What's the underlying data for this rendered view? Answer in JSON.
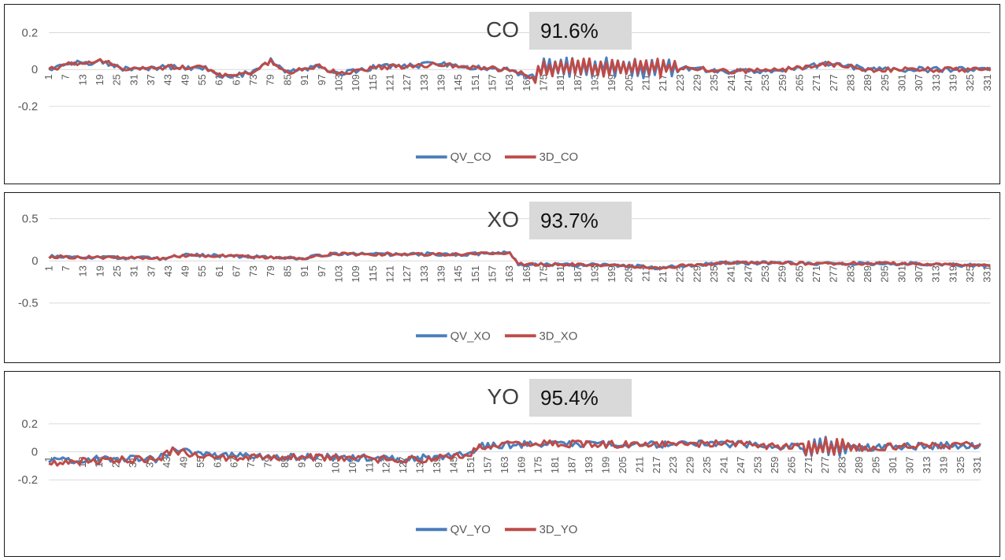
{
  "colors": {
    "qv": "#4a7ebb",
    "d3": "#be4b48",
    "grid": "#d9d9d9",
    "axis": "#595959"
  },
  "chart_data": [
    {
      "type": "line",
      "title": "CO",
      "percent_label": "91.6%",
      "ylim": [
        -0.25,
        0.25
      ],
      "yticks": [
        0.2,
        0,
        -0.2
      ],
      "ytick_labels": [
        "0.2",
        "0",
        "-0.2"
      ],
      "x_count": 332,
      "x_tick_labels": [
        "1",
        "7",
        "13",
        "19",
        "25",
        "31",
        "37",
        "43",
        "49",
        "55",
        "61",
        "67",
        "73",
        "79",
        "85",
        "91",
        "97",
        "103",
        "109",
        "115",
        "121",
        "127",
        "133",
        "139",
        "145",
        "151",
        "157",
        "163",
        "169",
        "175",
        "181",
        "187",
        "193",
        "199",
        "205",
        "211",
        "217",
        "223",
        "229",
        "235",
        "241",
        "247",
        "253",
        "259",
        "265",
        "271",
        "277",
        "283",
        "289",
        "295",
        "301",
        "307",
        "313",
        "319",
        "325",
        "331"
      ],
      "grid": true,
      "legend": "bottom",
      "series": [
        {
          "name": "QV_CO",
          "segments": [
            [
              1,
              0.0
            ],
            [
              10,
              0.035
            ],
            [
              20,
              0.045
            ],
            [
              28,
              0.0
            ],
            [
              45,
              0.015
            ],
            [
              55,
              0.01
            ],
            [
              62,
              -0.035
            ],
            [
              72,
              -0.02
            ],
            [
              79,
              0.05
            ],
            [
              85,
              -0.02
            ],
            [
              95,
              0.02
            ],
            [
              103,
              -0.02
            ],
            [
              115,
              0.01
            ],
            [
              127,
              0.02
            ],
            [
              139,
              0.03
            ],
            [
              151,
              0.01
            ],
            [
              163,
              0.0
            ],
            [
              170,
              -0.04
            ],
            [
              175,
              0.01
            ],
            [
              225,
              0.01
            ],
            [
              240,
              -0.01
            ],
            [
              260,
              0.0
            ],
            [
              275,
              0.03
            ],
            [
              290,
              0.0
            ],
            [
              310,
              0.0
            ],
            [
              332,
              0.0
            ]
          ],
          "noise": 0.015,
          "burst": [
            172,
            222,
            0.04
          ]
        },
        {
          "name": "3D_CO",
          "segments": [
            [
              1,
              0.0
            ],
            [
              10,
              0.035
            ],
            [
              20,
              0.045
            ],
            [
              28,
              0.0
            ],
            [
              45,
              0.015
            ],
            [
              55,
              0.01
            ],
            [
              62,
              -0.03
            ],
            [
              72,
              -0.015
            ],
            [
              79,
              0.045
            ],
            [
              85,
              -0.02
            ],
            [
              95,
              0.02
            ],
            [
              103,
              -0.02
            ],
            [
              115,
              0.01
            ],
            [
              127,
              0.02
            ],
            [
              139,
              0.03
            ],
            [
              151,
              0.01
            ],
            [
              163,
              0.0
            ],
            [
              170,
              -0.04
            ],
            [
              175,
              0.01
            ],
            [
              225,
              0.01
            ],
            [
              240,
              -0.01
            ],
            [
              260,
              0.0
            ],
            [
              275,
              0.03
            ],
            [
              290,
              0.0
            ],
            [
              310,
              0.0
            ],
            [
              332,
              0.0
            ]
          ],
          "noise": 0.013,
          "burst": [
            172,
            222,
            0.04
          ]
        }
      ]
    },
    {
      "type": "line",
      "title": "XO",
      "percent_label": "93.7%",
      "ylim": [
        -0.62,
        0.62
      ],
      "yticks": [
        0.5,
        0,
        -0.5
      ],
      "ytick_labels": [
        "0.5",
        "0",
        "-0.5"
      ],
      "x_count": 332,
      "x_tick_labels": [
        "1",
        "7",
        "13",
        "19",
        "25",
        "31",
        "37",
        "43",
        "49",
        "55",
        "61",
        "67",
        "73",
        "79",
        "85",
        "91",
        "97",
        "103",
        "109",
        "115",
        "121",
        "127",
        "133",
        "139",
        "145",
        "151",
        "157",
        "163",
        "169",
        "175",
        "181",
        "187",
        "193",
        "199",
        "205",
        "211",
        "217",
        "223",
        "229",
        "235",
        "241",
        "247",
        "253",
        "259",
        "265",
        "271",
        "277",
        "283",
        "289",
        "295",
        "301",
        "307",
        "313",
        "319",
        "325",
        "331"
      ],
      "grid": true,
      "legend": "bottom",
      "series": [
        {
          "name": "QV_XO",
          "segments": [
            [
              1,
              0.05
            ],
            [
              40,
              0.03
            ],
            [
              50,
              0.07
            ],
            [
              90,
              0.03
            ],
            [
              100,
              0.08
            ],
            [
              150,
              0.08
            ],
            [
              163,
              0.1
            ],
            [
              166,
              -0.04
            ],
            [
              200,
              -0.05
            ],
            [
              215,
              -0.08
            ],
            [
              240,
              -0.02
            ],
            [
              270,
              -0.03
            ],
            [
              300,
              -0.03
            ],
            [
              332,
              -0.06
            ]
          ],
          "noise": 0.02,
          "burst": [
            0,
            0,
            0
          ]
        },
        {
          "name": "3D_XO",
          "segments": [
            [
              1,
              0.05
            ],
            [
              40,
              0.03
            ],
            [
              50,
              0.07
            ],
            [
              90,
              0.03
            ],
            [
              100,
              0.08
            ],
            [
              150,
              0.08
            ],
            [
              163,
              0.1
            ],
            [
              166,
              -0.04
            ],
            [
              200,
              -0.05
            ],
            [
              215,
              -0.08
            ],
            [
              240,
              -0.02
            ],
            [
              270,
              -0.03
            ],
            [
              300,
              -0.03
            ],
            [
              332,
              -0.06
            ]
          ],
          "noise": 0.018,
          "burst": [
            0,
            0,
            0
          ]
        }
      ]
    },
    {
      "type": "line",
      "title": "YO",
      "percent_label": "95.4%",
      "ylim": [
        -0.27,
        0.27
      ],
      "yticks": [
        0.2,
        0,
        -0.2
      ],
      "ytick_labels": [
        "0.2",
        "0",
        "-0.2"
      ],
      "x_count": 332,
      "x_tick_labels": [
        "1",
        "7",
        "13",
        "19",
        "25",
        "31",
        "37",
        "43",
        "49",
        "55",
        "61",
        "67",
        "73",
        "79",
        "85",
        "91",
        "97",
        "103",
        "109",
        "115",
        "121",
        "127",
        "133",
        "139",
        "145",
        "151",
        "157",
        "163",
        "169",
        "175",
        "181",
        "187",
        "193",
        "199",
        "205",
        "211",
        "217",
        "223",
        "229",
        "235",
        "241",
        "247",
        "253",
        "259",
        "265",
        "271",
        "277",
        "283",
        "289",
        "295",
        "301",
        "307",
        "313",
        "319",
        "325",
        "331"
      ],
      "grid": true,
      "legend": "bottom",
      "series": [
        {
          "name": "QV_YO",
          "segments": [
            [
              1,
              -0.07
            ],
            [
              20,
              -0.05
            ],
            [
              40,
              -0.05
            ],
            [
              45,
              0.02
            ],
            [
              60,
              -0.03
            ],
            [
              100,
              -0.04
            ],
            [
              130,
              -0.05
            ],
            [
              150,
              -0.02
            ],
            [
              155,
              0.04
            ],
            [
              175,
              0.06
            ],
            [
              210,
              0.05
            ],
            [
              240,
              0.06
            ],
            [
              260,
              0.04
            ],
            [
              290,
              0.03
            ],
            [
              332,
              0.05
            ]
          ],
          "noise": 0.025,
          "burst": [
            270,
            285,
            0.05
          ]
        },
        {
          "name": "3D_YO",
          "segments": [
            [
              1,
              -0.08
            ],
            [
              20,
              -0.06
            ],
            [
              40,
              -0.05
            ],
            [
              45,
              0.01
            ],
            [
              60,
              -0.04
            ],
            [
              100,
              -0.04
            ],
            [
              130,
              -0.06
            ],
            [
              150,
              -0.02
            ],
            [
              155,
              0.04
            ],
            [
              175,
              0.06
            ],
            [
              210,
              0.05
            ],
            [
              240,
              0.06
            ],
            [
              260,
              0.04
            ],
            [
              290,
              0.03
            ],
            [
              332,
              0.05
            ]
          ],
          "noise": 0.025,
          "burst": [
            270,
            285,
            0.05
          ]
        }
      ]
    }
  ]
}
